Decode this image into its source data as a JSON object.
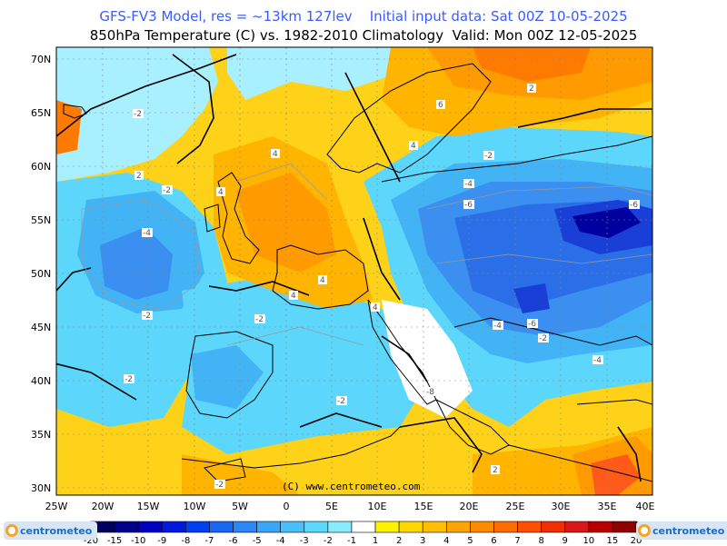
{
  "header": {
    "line1": "GFS-FV3 Model, res = ~13km 127lev    Initial input data: Sat 00Z 10-05-2025",
    "line2": "850hPa Temperature (C) vs. 1982-2010 Climatology  Valid: Mon 00Z 12-05-2025"
  },
  "map": {
    "lat_labels": [
      "70N",
      "65N",
      "60N",
      "55N",
      "50N",
      "45N",
      "40N",
      "35N",
      "30N"
    ],
    "lon_labels": [
      "25W",
      "20W",
      "15W",
      "10W",
      "5W",
      "0",
      "5E",
      "10E",
      "15E",
      "20E",
      "25E",
      "30E",
      "35E",
      "40E"
    ],
    "copyright": "(C) www.centrometeo.com",
    "contour_labels": [
      "-2",
      "-2",
      "-4",
      "-2",
      "-2",
      "-2",
      "-2",
      "-2",
      "-2",
      "4",
      "4",
      "4",
      "4",
      "4",
      "4",
      "2",
      "6",
      "-4",
      "-6",
      "-6",
      "-4",
      "-6",
      "-2",
      "-4",
      "-8",
      "2",
      "2"
    ],
    "colors": {
      "neg8": "#0000a0",
      "neg6": "#1a3fd6",
      "neg5": "#2a6ee8",
      "neg4": "#3b8ff0",
      "neg3": "#42b4f5",
      "neg2": "#5cd6fa",
      "neg1": "#a8f0ff",
      "zero": "#ffffff",
      "pos1": "#fff04a",
      "pos2": "#ffd21a",
      "pos3": "#ffb400",
      "pos4": "#ff9a00",
      "pos5": "#ff7a00",
      "pos6": "#ff5a1a",
      "pos8": "#e8281e"
    }
  },
  "colorbar": {
    "ticks": [
      "-20",
      "-15",
      "-10",
      "-9",
      "-8",
      "-7",
      "-6",
      "-5",
      "-4",
      "-3",
      "-2",
      "-1",
      "1",
      "2",
      "3",
      "4",
      "5",
      "6",
      "7",
      "8",
      "9",
      "10",
      "15",
      "20"
    ],
    "colors": [
      "#000060",
      "#00008c",
      "#0000c0",
      "#0018e0",
      "#0040f0",
      "#1a66f5",
      "#2a88f8",
      "#3aa6fa",
      "#48c0fc",
      "#5ad8fd",
      "#88ecff",
      "#ffffff",
      "#fff200",
      "#ffd800",
      "#ffbe00",
      "#ffa400",
      "#ff8a00",
      "#ff6e00",
      "#ff5000",
      "#f03000",
      "#d81818",
      "#b80000",
      "#900000"
    ]
  },
  "logos": {
    "left": "centrometeo",
    "right": "centrometeo"
  }
}
